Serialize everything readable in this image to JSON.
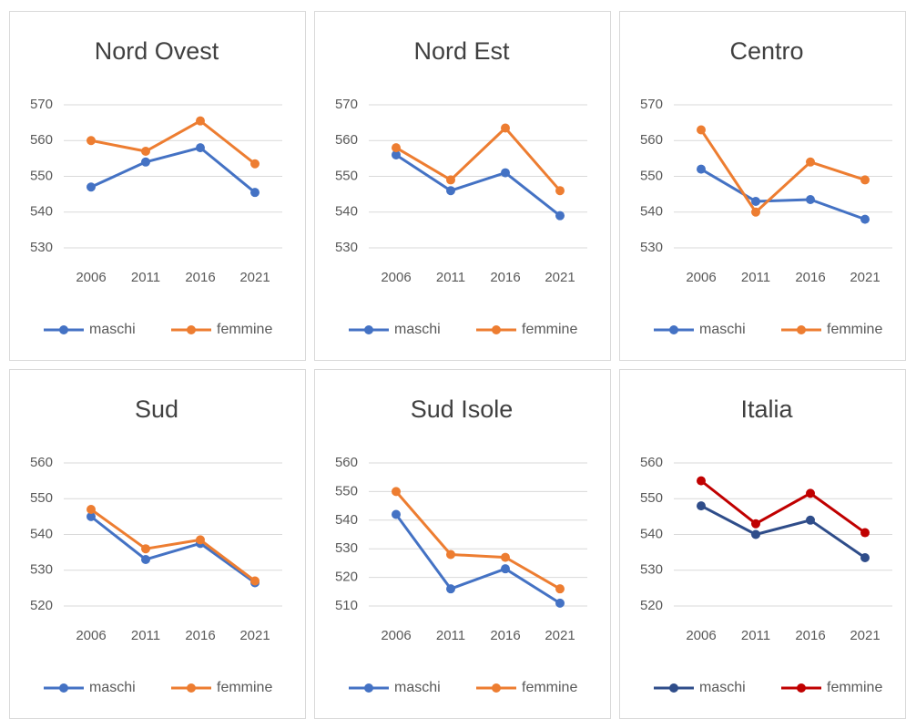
{
  "chart_data": [
    {
      "type": "line",
      "title": "Nord Ovest",
      "categories": [
        "2006",
        "2011",
        "2016",
        "2021"
      ],
      "series": [
        {
          "name": "maschi",
          "color": "#4472c4",
          "values": [
            547,
            554,
            558,
            545.5
          ]
        },
        {
          "name": "femmine",
          "color": "#ed7d31",
          "values": [
            560,
            557,
            565.5,
            553.5
          ]
        }
      ],
      "ylim": [
        530,
        570
      ],
      "yticks": [
        530,
        540,
        550,
        560,
        570
      ],
      "grid": true,
      "legend": "bottom"
    },
    {
      "type": "line",
      "title": "Nord Est",
      "categories": [
        "2006",
        "2011",
        "2016",
        "2021"
      ],
      "series": [
        {
          "name": "maschi",
          "color": "#4472c4",
          "values": [
            556,
            546,
            551,
            539
          ]
        },
        {
          "name": "femmine",
          "color": "#ed7d31",
          "values": [
            558,
            549,
            563.5,
            546
          ]
        }
      ],
      "ylim": [
        530,
        570
      ],
      "yticks": [
        530,
        540,
        550,
        560,
        570
      ],
      "grid": true,
      "legend": "bottom"
    },
    {
      "type": "line",
      "title": "Centro",
      "categories": [
        "2006",
        "2011",
        "2016",
        "2021"
      ],
      "series": [
        {
          "name": "maschi",
          "color": "#4472c4",
          "values": [
            552,
            543,
            543.5,
            538
          ]
        },
        {
          "name": "femmine",
          "color": "#ed7d31",
          "values": [
            563,
            540,
            554,
            549
          ]
        }
      ],
      "ylim": [
        530,
        570
      ],
      "yticks": [
        530,
        540,
        550,
        560,
        570
      ],
      "grid": true,
      "legend": "bottom"
    },
    {
      "type": "line",
      "title": "Sud",
      "categories": [
        "2006",
        "2011",
        "2016",
        "2021"
      ],
      "series": [
        {
          "name": "maschi",
          "color": "#4472c4",
          "values": [
            545,
            533,
            537.5,
            526.5
          ]
        },
        {
          "name": "femmine",
          "color": "#ed7d31",
          "values": [
            547,
            536,
            538.5,
            527
          ]
        }
      ],
      "ylim": [
        520,
        560
      ],
      "yticks": [
        520,
        530,
        540,
        550,
        560
      ],
      "grid": true,
      "legend": "bottom"
    },
    {
      "type": "line",
      "title": "Sud Isole",
      "categories": [
        "2006",
        "2011",
        "2016",
        "2021"
      ],
      "series": [
        {
          "name": "maschi",
          "color": "#4472c4",
          "values": [
            542,
            516,
            523,
            511
          ]
        },
        {
          "name": "femmine",
          "color": "#ed7d31",
          "values": [
            550,
            528,
            527,
            516
          ]
        }
      ],
      "ylim": [
        510,
        560
      ],
      "yticks": [
        510,
        520,
        530,
        540,
        550,
        560
      ],
      "grid": true,
      "legend": "bottom"
    },
    {
      "type": "line",
      "title": "Italia",
      "categories": [
        "2006",
        "2011",
        "2016",
        "2021"
      ],
      "series": [
        {
          "name": "maschi",
          "color": "#2f4d8a",
          "values": [
            548,
            540,
            544,
            533.5
          ]
        },
        {
          "name": "femmine",
          "color": "#c00000",
          "values": [
            555,
            543,
            551.5,
            540.5
          ]
        }
      ],
      "ylim": [
        520,
        560
      ],
      "yticks": [
        520,
        530,
        540,
        550,
        560
      ],
      "grid": true,
      "legend": "bottom"
    }
  ]
}
